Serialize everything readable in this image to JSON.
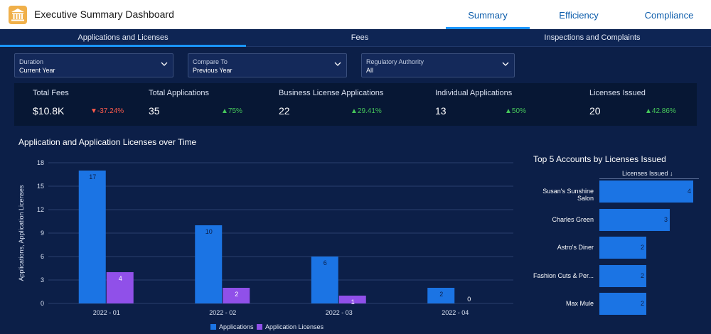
{
  "header": {
    "app_title": "Executive Summary Dashboard",
    "app_icon": "bank-icon",
    "tabs": [
      {
        "label": "Summary",
        "active": true
      },
      {
        "label": "Efficiency",
        "active": false
      },
      {
        "label": "Compliance",
        "active": false
      }
    ]
  },
  "subtabs": [
    {
      "label": "Applications and Licenses",
      "active": true
    },
    {
      "label": "Fees",
      "active": false
    },
    {
      "label": "Inspections and Complaints",
      "active": false
    }
  ],
  "filters": [
    {
      "label": "Duration",
      "value": "Current Year"
    },
    {
      "label": "Compare To",
      "value": "Previous Year"
    },
    {
      "label": "Regulatory Authority",
      "value": "All"
    }
  ],
  "kpis": [
    {
      "label": "Total Fees",
      "value": "$10.8K",
      "delta": "▼-37.24%",
      "direction": "down"
    },
    {
      "label": "Total Applications",
      "value": "35",
      "delta": "▲75%",
      "direction": "up"
    },
    {
      "label": "Business License Applications",
      "value": "22",
      "delta": "▲29.41%",
      "direction": "up"
    },
    {
      "label": "Individual Applications",
      "value": "13",
      "delta": "▲50%",
      "direction": "up"
    },
    {
      "label": "Licenses Issued",
      "value": "20",
      "delta": "▲42.86%",
      "direction": "up"
    }
  ],
  "chart_data": [
    {
      "type": "bar",
      "title": "Application and Application Licenses over Time",
      "xlabel": "",
      "ylabel": "Applications, Application Licenses",
      "categories": [
        "2022 - 01",
        "2022 - 02",
        "2022 - 03",
        "2022 - 04"
      ],
      "series": [
        {
          "name": "Applications",
          "values": [
            17,
            10,
            6,
            2
          ],
          "color": "#1b74e4"
        },
        {
          "name": "Application Licenses",
          "values": [
            4,
            2,
            1,
            0
          ],
          "color": "#9050e9"
        }
      ],
      "yticks": [
        0,
        3,
        6,
        9,
        12,
        15,
        18
      ],
      "ylim": [
        0,
        18
      ],
      "grid": true,
      "legend": "bottom"
    },
    {
      "type": "bar",
      "orientation": "horizontal",
      "title": "Top 5 Accounts by Licenses Issued",
      "column_header": "Licenses Issued ↓",
      "categories": [
        "Susan's Sunshine Salon",
        "Charles Green",
        "Astro's Diner",
        "Fashion Cuts & Per...",
        "Max Mule"
      ],
      "values": [
        4,
        3,
        2,
        2,
        2
      ],
      "color": "#1b74e4"
    }
  ],
  "colors": {
    "background": "#0c1f48",
    "accent": "#1b96ff",
    "positive": "#45c65a",
    "negative": "#fe5c4c"
  }
}
